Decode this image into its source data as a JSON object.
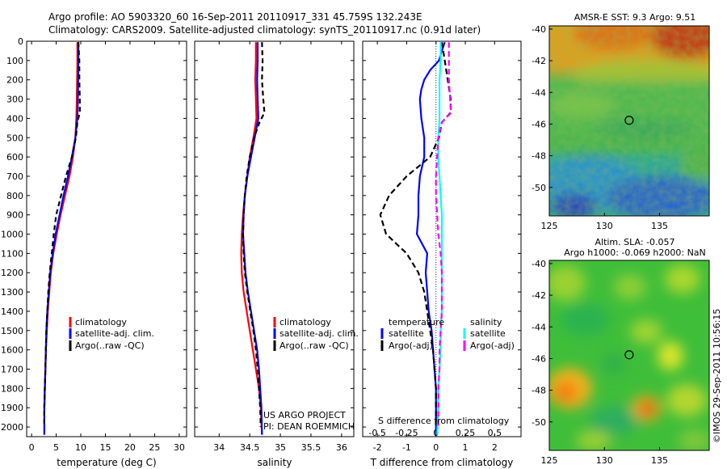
{
  "header": {
    "line1": "Argo profile: AO 5903320_60 16-Sep-2011 20110917_331 45.759S 132.243E",
    "line2": "Climatology: CARS2009. Satellite-adjusted climatology: synTS_20110917.nc (0.91d later)"
  },
  "credit": {
    "project": "US ARGO PROJECT",
    "pi": "PI: DEAN ROEMMICH"
  },
  "footer_stamp": "©IMOS 29-Sep-2011 10:56:15",
  "colors": {
    "climatology": "#ff0000",
    "satellite": "#0000ff",
    "argo": "#000000",
    "satellite_salinity": "#00ffff",
    "argo_salinity": "#ff00ff",
    "marker": "#000000"
  },
  "chart_data": [
    {
      "id": "temperature",
      "type": "line",
      "xlabel": "temperature (deg C)",
      "ylabel": "",
      "xlim": [
        -1,
        31.5
      ],
      "ylim": [
        2050,
        0
      ],
      "xticks": [
        0,
        5,
        10,
        15,
        20,
        25,
        30
      ],
      "yticks": [
        0,
        100,
        200,
        300,
        400,
        500,
        600,
        700,
        800,
        900,
        1000,
        1100,
        1200,
        1300,
        1400,
        1500,
        1600,
        1700,
        1800,
        1900,
        2000
      ],
      "legend": [
        "climatology",
        "satellite-adj. clim.",
        "Argo(..raw -QC)"
      ],
      "series": [
        {
          "name": "climatology",
          "color": "#ff0000",
          "dash": "",
          "points": [
            [
              9.3,
              5
            ],
            [
              9.3,
              100
            ],
            [
              9.2,
              300
            ],
            [
              9.1,
              400
            ],
            [
              8.9,
              500
            ],
            [
              8.4,
              600
            ],
            [
              7.7,
              700
            ],
            [
              6.8,
              800
            ],
            [
              5.9,
              900
            ],
            [
              5.1,
              1000
            ],
            [
              4.4,
              1100
            ],
            [
              3.9,
              1200
            ],
            [
              3.6,
              1300
            ],
            [
              3.3,
              1400
            ],
            [
              3.1,
              1500
            ],
            [
              2.9,
              1600
            ],
            [
              2.8,
              1700
            ],
            [
              2.7,
              1800
            ],
            [
              2.6,
              1900
            ],
            [
              2.6,
              2040
            ]
          ]
        },
        {
          "name": "satellite-adj. clim.",
          "color": "#0000ff",
          "dash": "",
          "points": [
            [
              9.5,
              5
            ],
            [
              9.5,
              100
            ],
            [
              9.4,
              300
            ],
            [
              9.3,
              400
            ],
            [
              8.9,
              500
            ],
            [
              8.2,
              600
            ],
            [
              7.4,
              700
            ],
            [
              6.5,
              800
            ],
            [
              5.7,
              900
            ],
            [
              4.9,
              1000
            ],
            [
              4.3,
              1100
            ],
            [
              3.8,
              1200
            ],
            [
              3.5,
              1300
            ],
            [
              3.2,
              1400
            ],
            [
              3.0,
              1500
            ],
            [
              2.9,
              1600
            ],
            [
              2.8,
              1700
            ],
            [
              2.7,
              1800
            ],
            [
              2.6,
              1900
            ],
            [
              2.6,
              2040
            ]
          ]
        },
        {
          "name": "Argo(..raw -QC)",
          "color": "#000000",
          "dash": "6,4",
          "points": [
            [
              9.5,
              5
            ],
            [
              9.7,
              100
            ],
            [
              9.7,
              200
            ],
            [
              9.8,
              300
            ],
            [
              9.8,
              370
            ],
            [
              9.3,
              420
            ],
            [
              9.0,
              500
            ],
            [
              8.2,
              600
            ],
            [
              7.0,
              700
            ],
            [
              6.0,
              800
            ],
            [
              5.0,
              900
            ],
            [
              4.5,
              1000
            ],
            [
              4.1,
              1100
            ],
            [
              3.7,
              1200
            ],
            [
              3.4,
              1300
            ],
            [
              3.2,
              1400
            ],
            [
              3.0,
              1500
            ],
            [
              2.9,
              1600
            ],
            [
              2.8,
              1700
            ],
            [
              2.7,
              1800
            ],
            [
              2.6,
              1900
            ],
            [
              2.6,
              2000
            ]
          ]
        }
      ]
    },
    {
      "id": "salinity",
      "type": "line",
      "xlabel": "salinity",
      "ylabel": "",
      "xlim": [
        33.6,
        36.2
      ],
      "ylim": [
        2050,
        0
      ],
      "xticks": [
        34,
        34.5,
        35,
        35.5,
        36
      ],
      "xticklabels": [
        "34",
        "34.5",
        "35",
        "35.5",
        "36"
      ],
      "yticks": [],
      "legend": [
        "climatology",
        "satellite-adj. clim.",
        "Argo(..raw -QC)"
      ],
      "series": [
        {
          "name": "climatology",
          "color": "#ff0000",
          "dash": "",
          "points": [
            [
              34.6,
              5
            ],
            [
              34.6,
              100
            ],
            [
              34.59,
              200
            ],
            [
              34.6,
              300
            ],
            [
              34.61,
              400
            ],
            [
              34.56,
              500
            ],
            [
              34.5,
              600
            ],
            [
              34.46,
              700
            ],
            [
              34.42,
              800
            ],
            [
              34.39,
              900
            ],
            [
              34.37,
              1000
            ],
            [
              34.36,
              1100
            ],
            [
              34.37,
              1200
            ],
            [
              34.4,
              1300
            ],
            [
              34.45,
              1400
            ],
            [
              34.5,
              1500
            ],
            [
              34.55,
              1600
            ],
            [
              34.6,
              1700
            ],
            [
              34.65,
              1800
            ],
            [
              34.68,
              1900
            ],
            [
              34.7,
              2040
            ]
          ]
        },
        {
          "name": "satellite-adj. clim.",
          "color": "#0000ff",
          "dash": "",
          "points": [
            [
              34.63,
              5
            ],
            [
              34.63,
              100
            ],
            [
              34.62,
              200
            ],
            [
              34.63,
              300
            ],
            [
              34.64,
              400
            ],
            [
              34.58,
              500
            ],
            [
              34.52,
              600
            ],
            [
              34.46,
              700
            ],
            [
              34.42,
              800
            ],
            [
              34.4,
              900
            ],
            [
              34.39,
              1000
            ],
            [
              34.41,
              1100
            ],
            [
              34.43,
              1200
            ],
            [
              34.47,
              1300
            ],
            [
              34.52,
              1400
            ],
            [
              34.57,
              1500
            ],
            [
              34.62,
              1600
            ],
            [
              34.65,
              1700
            ],
            [
              34.67,
              1800
            ],
            [
              34.69,
              1900
            ],
            [
              34.7,
              2040
            ]
          ]
        },
        {
          "name": "Argo(..raw -QC)",
          "color": "#000000",
          "dash": "6,4",
          "points": [
            [
              34.7,
              5
            ],
            [
              34.71,
              100
            ],
            [
              34.7,
              200
            ],
            [
              34.72,
              300
            ],
            [
              34.74,
              370
            ],
            [
              34.66,
              420
            ],
            [
              34.57,
              500
            ],
            [
              34.5,
              600
            ],
            [
              34.45,
              700
            ],
            [
              34.42,
              800
            ],
            [
              34.4,
              900
            ],
            [
              34.39,
              1000
            ],
            [
              34.4,
              1100
            ],
            [
              34.42,
              1200
            ],
            [
              34.46,
              1300
            ],
            [
              34.51,
              1400
            ],
            [
              34.56,
              1500
            ],
            [
              34.6,
              1600
            ],
            [
              34.63,
              1700
            ],
            [
              34.65,
              1800
            ],
            [
              34.67,
              1900
            ],
            [
              34.68,
              2000
            ]
          ]
        }
      ]
    },
    {
      "id": "difference",
      "type": "line",
      "xlabel": "T difference from climatology",
      "secondary_xlabel": "S difference from climatology",
      "xlim": [
        -2.5,
        2.9
      ],
      "ylim": [
        2050,
        0
      ],
      "xticks": [
        -2,
        -1,
        0,
        1,
        2
      ],
      "secondary_xticks": [
        -0.5,
        -0.25,
        0,
        0.25,
        0.5
      ],
      "secondary_xticklabels": [
        "-0.5",
        "-0.25",
        "0",
        "0.25",
        "0.5"
      ],
      "secondary_scale": 4,
      "yticks": [],
      "legend_temperature": {
        "title": "temperature",
        "items": [
          "satellite",
          "Argo(-adj)"
        ]
      },
      "legend_salinity": {
        "title": "salinity",
        "items": [
          "satellite",
          "Argo(-adj)"
        ]
      },
      "series": [
        {
          "name": "temperature satellite",
          "color": "#0000ff",
          "dash": "",
          "scale": 1,
          "points": [
            [
              0.3,
              5
            ],
            [
              0.2,
              50
            ],
            [
              0.1,
              100
            ],
            [
              -0.2,
              150
            ],
            [
              -0.4,
              200
            ],
            [
              -0.5,
              250
            ],
            [
              -0.55,
              300
            ],
            [
              -0.5,
              400
            ],
            [
              -0.4,
              500
            ],
            [
              -0.4,
              600
            ],
            [
              -0.55,
              700
            ],
            [
              -0.6,
              800
            ],
            [
              -0.6,
              900
            ],
            [
              -0.65,
              1000
            ],
            [
              -0.3,
              1100
            ],
            [
              -0.35,
              1200
            ],
            [
              -0.3,
              1300
            ],
            [
              -0.25,
              1400
            ],
            [
              -0.15,
              1500
            ],
            [
              -0.1,
              1600
            ],
            [
              -0.05,
              1700
            ],
            [
              0.0,
              1800
            ],
            [
              0.0,
              2040
            ]
          ]
        },
        {
          "name": "temperature Argo(-adj)",
          "color": "#000000",
          "dash": "7,4",
          "scale": 1,
          "points": [
            [
              0.2,
              5
            ],
            [
              0.3,
              100
            ],
            [
              0.4,
              200
            ],
            [
              0.5,
              300
            ],
            [
              0.5,
              370
            ],
            [
              0.2,
              420
            ],
            [
              0.1,
              500
            ],
            [
              -0.2,
              600
            ],
            [
              -1.0,
              700
            ],
            [
              -1.6,
              800
            ],
            [
              -1.9,
              900
            ],
            [
              -1.7,
              1000
            ],
            [
              -1.0,
              1100
            ],
            [
              -0.6,
              1200
            ],
            [
              -0.4,
              1300
            ],
            [
              -0.3,
              1400
            ],
            [
              -0.2,
              1500
            ],
            [
              -0.1,
              1600
            ],
            [
              -0.05,
              1700
            ],
            [
              0.0,
              1800
            ],
            [
              0.0,
              1900
            ],
            [
              0.0,
              2000
            ]
          ]
        },
        {
          "name": "salinity satellite",
          "color": "#00ffff",
          "dash": "",
          "scale": 4,
          "points": [
            [
              0.04,
              5
            ],
            [
              0.04,
              100
            ],
            [
              0.03,
              200
            ],
            [
              0.03,
              300
            ],
            [
              0.03,
              400
            ],
            [
              0.02,
              500
            ],
            [
              0.02,
              600
            ],
            [
              0.03,
              700
            ],
            [
              0.04,
              800
            ],
            [
              0.05,
              900
            ],
            [
              0.05,
              1000
            ],
            [
              0.05,
              1100
            ],
            [
              0.05,
              1200
            ],
            [
              0.05,
              1300
            ],
            [
              0.05,
              1400
            ],
            [
              0.04,
              1500
            ],
            [
              0.04,
              1600
            ],
            [
              0.03,
              1700
            ],
            [
              0.02,
              1800
            ],
            [
              0.02,
              1900
            ],
            [
              0.01,
              2040
            ]
          ]
        },
        {
          "name": "salinity Argo(-adj)",
          "color": "#ff00ff",
          "dash": "7,4",
          "scale": 4,
          "points": [
            [
              0.11,
              5
            ],
            [
              0.11,
              100
            ],
            [
              0.11,
              200
            ],
            [
              0.12,
              300
            ],
            [
              0.13,
              370
            ],
            [
              0.05,
              420
            ],
            [
              0.02,
              500
            ],
            [
              0.01,
              600
            ],
            [
              0.0,
              700
            ],
            [
              0.0,
              800
            ],
            [
              0.01,
              900
            ],
            [
              0.02,
              1000
            ],
            [
              0.04,
              1100
            ],
            [
              0.05,
              1200
            ],
            [
              0.05,
              1300
            ],
            [
              0.05,
              1400
            ],
            [
              0.04,
              1500
            ],
            [
              0.03,
              1600
            ],
            [
              0.03,
              1700
            ],
            [
              0.02,
              1800
            ],
            [
              0.02,
              1900
            ],
            [
              0.02,
              2000
            ]
          ]
        }
      ]
    },
    {
      "id": "sst_map",
      "type": "heatmap",
      "title": "AMSR-E SST: 9.3  Argo: 9.51",
      "xlim": [
        125,
        139.5
      ],
      "ylim": [
        -51.8,
        -39.8
      ],
      "xticks": [
        125,
        130,
        135
      ],
      "yticks": [
        -40,
        -42,
        -44,
        -46,
        -48,
        -50
      ],
      "marker": {
        "lon": 132.24,
        "lat": -45.76
      }
    },
    {
      "id": "sla_map",
      "type": "heatmap",
      "title": "Altim. SLA: -0.057",
      "subtitle": "Argo h1000: -0.069 h2000: NaN",
      "xlim": [
        125,
        139.5
      ],
      "ylim": [
        -51.8,
        -39.8
      ],
      "xticks": [
        125,
        130,
        135
      ],
      "yticks": [
        -40,
        -42,
        -44,
        -46,
        -48,
        -50
      ],
      "marker": {
        "lon": 132.24,
        "lat": -45.76
      }
    }
  ]
}
